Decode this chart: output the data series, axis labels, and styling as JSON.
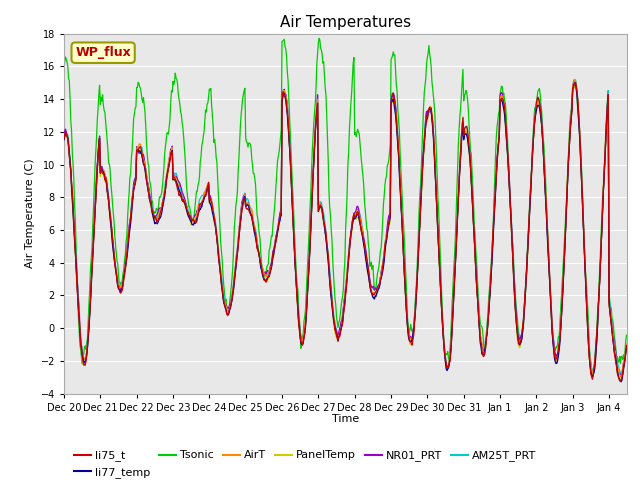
{
  "title": "Air Temperatures",
  "xlabel": "Time",
  "ylabel": "Air Temperature (C)",
  "ylim": [
    -4,
    18
  ],
  "yticks": [
    -4,
    -2,
    0,
    2,
    4,
    6,
    8,
    10,
    12,
    14,
    16,
    18
  ],
  "x_labels": [
    "Dec 20",
    "Dec 21",
    "Dec 22",
    "Dec 23",
    "Dec 24",
    "Dec 25",
    "Dec 26",
    "Dec 27",
    "Dec 28",
    "Dec 29",
    "Dec 30",
    "Dec 31",
    "Jan 1",
    "Jan 2",
    "Jan 3",
    "Jan 4"
  ],
  "annotation_text": "WP_flux",
  "annotation_color": "#bb0000",
  "annotation_bg": "#ffffcc",
  "annotation_edge": "#999900",
  "series_colors": {
    "li75_t": "#cc0000",
    "li77_temp": "#000099",
    "Tsonic": "#00cc00",
    "AirT": "#ff8800",
    "PanelTemp": "#cccc00",
    "NR01_PRT": "#9900cc",
    "AM25T_PRT": "#00cccc"
  },
  "background_color": "#ffffff",
  "plot_bg": "#e8e8e8",
  "grid_color": "#ffffff",
  "title_fontsize": 11,
  "tick_fontsize": 7,
  "legend_fontsize": 8
}
